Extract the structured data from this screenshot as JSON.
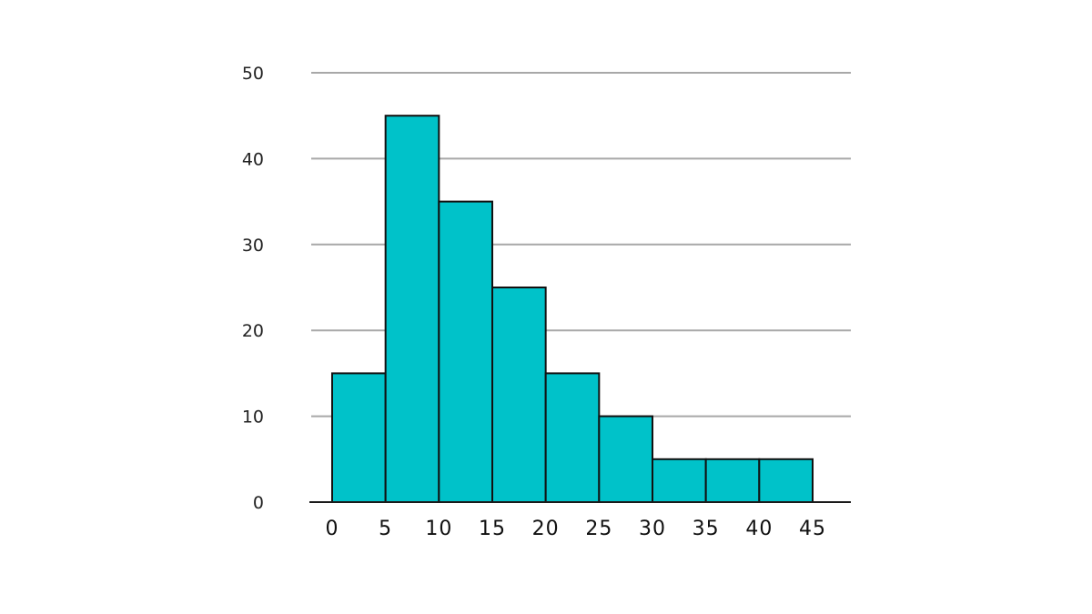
{
  "chart_data": {
    "type": "bar",
    "bin_edges": [
      0,
      5,
      10,
      15,
      20,
      25,
      30,
      35,
      40,
      45
    ],
    "values": [
      15,
      45,
      35,
      25,
      15,
      10,
      5,
      5,
      5
    ],
    "ylim": [
      0,
      50
    ],
    "y_ticks": [
      0,
      10,
      20,
      30,
      40,
      50
    ],
    "x_ticks": [
      0,
      5,
      10,
      15,
      20,
      25,
      30,
      35,
      40,
      45
    ],
    "grid": true,
    "bar_color": "#00c2c9",
    "title": "",
    "xlabel": "",
    "ylabel": ""
  }
}
